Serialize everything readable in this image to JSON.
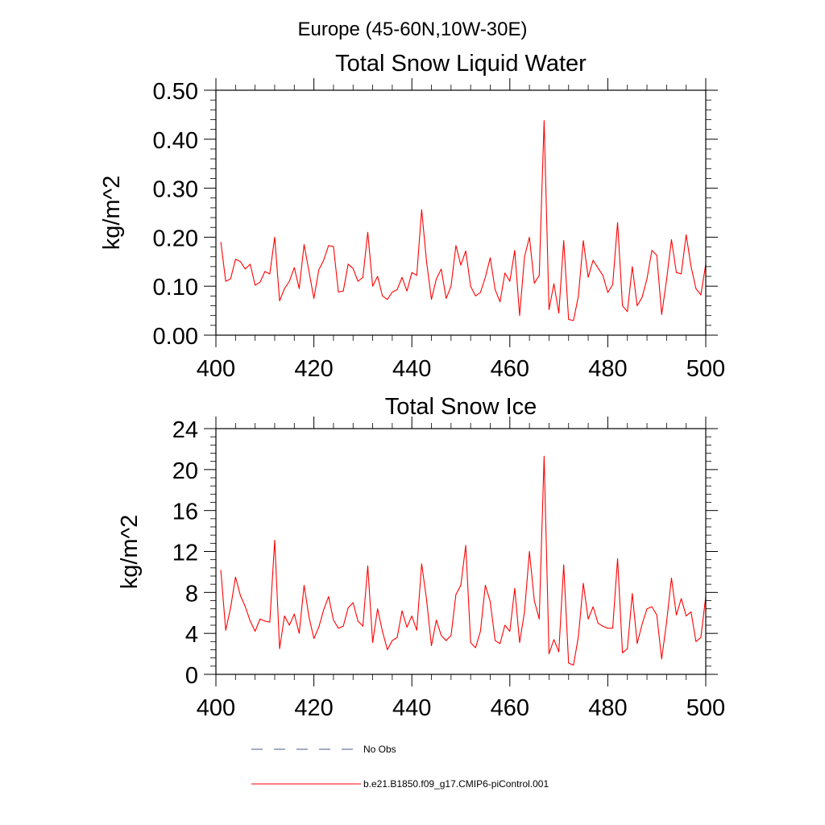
{
  "figure": {
    "suptitle": "Europe (45-60N,10W-30E)",
    "series_color": "#ff0000",
    "obs_color": "#4a5a8a",
    "legend": {
      "obs_label": "No Obs",
      "model_label": "b.e21.B1850.f09_g17.CMIP6-piControl.001"
    }
  },
  "chart_data": [
    {
      "type": "line",
      "title": "Total Snow Liquid Water",
      "xlabel": "",
      "ylabel": "kg/m^2",
      "xlim": [
        400,
        500
      ],
      "ylim": [
        0,
        0.5
      ],
      "xticks": [
        400,
        420,
        440,
        460,
        480,
        500
      ],
      "yticks": [
        0,
        0.1,
        0.2,
        0.3,
        0.4,
        0.5
      ],
      "ytick_labels": [
        "0.00",
        "0.10",
        "0.20",
        "0.30",
        "0.40",
        "0.50"
      ],
      "grid": false,
      "series": [
        {
          "name": "b.e21.B1850.f09_g17.CMIP6-piControl.001",
          "x": [
            401,
            402,
            403,
            404,
            405,
            406,
            407,
            408,
            409,
            410,
            411,
            412,
            413,
            414,
            415,
            416,
            417,
            418,
            419,
            420,
            421,
            422,
            423,
            424,
            425,
            426,
            427,
            428,
            429,
            430,
            431,
            432,
            433,
            434,
            435,
            436,
            437,
            438,
            439,
            440,
            441,
            442,
            443,
            444,
            445,
            446,
            447,
            448,
            449,
            450,
            451,
            452,
            453,
            454,
            455,
            456,
            457,
            458,
            459,
            460,
            461,
            462,
            463,
            464,
            465,
            466,
            467,
            468,
            469,
            470,
            471,
            472,
            473,
            474,
            475,
            476,
            477,
            478,
            479,
            480,
            481,
            482,
            483,
            484,
            485,
            486,
            487,
            488,
            489,
            490,
            491,
            492,
            493,
            494,
            495,
            496,
            497,
            498,
            499,
            500
          ],
          "values": [
            0.19,
            0.11,
            0.115,
            0.155,
            0.15,
            0.135,
            0.145,
            0.102,
            0.108,
            0.13,
            0.125,
            0.2,
            0.07,
            0.095,
            0.11,
            0.138,
            0.095,
            0.185,
            0.13,
            0.075,
            0.133,
            0.153,
            0.183,
            0.181,
            0.088,
            0.09,
            0.145,
            0.136,
            0.11,
            0.118,
            0.21,
            0.1,
            0.12,
            0.08,
            0.073,
            0.088,
            0.093,
            0.118,
            0.09,
            0.128,
            0.122,
            0.256,
            0.15,
            0.073,
            0.115,
            0.135,
            0.075,
            0.1,
            0.183,
            0.143,
            0.172,
            0.1,
            0.08,
            0.087,
            0.118,
            0.158,
            0.093,
            0.068,
            0.127,
            0.11,
            0.173,
            0.04,
            0.16,
            0.2,
            0.106,
            0.122,
            0.438,
            0.052,
            0.105,
            0.045,
            0.193,
            0.032,
            0.03,
            0.08,
            0.193,
            0.118,
            0.153,
            0.137,
            0.122,
            0.087,
            0.103,
            0.23,
            0.06,
            0.048,
            0.14,
            0.06,
            0.077,
            0.115,
            0.173,
            0.163,
            0.042,
            0.113,
            0.195,
            0.128,
            0.125,
            0.205,
            0.14,
            0.095,
            0.082,
            0.145
          ]
        }
      ]
    },
    {
      "type": "line",
      "title": "Total Snow Ice",
      "xlabel": "",
      "ylabel": "kg/m^2",
      "xlim": [
        400,
        500
      ],
      "ylim": [
        0,
        24
      ],
      "xticks": [
        400,
        420,
        440,
        460,
        480,
        500
      ],
      "yticks": [
        0,
        4,
        8,
        12,
        16,
        20,
        24
      ],
      "ytick_labels": [
        "0",
        "4",
        "8",
        "12",
        "16",
        "20",
        "24"
      ],
      "grid": false,
      "series": [
        {
          "name": "b.e21.B1850.f09_g17.CMIP6-piControl.001",
          "x": [
            401,
            402,
            403,
            404,
            405,
            406,
            407,
            408,
            409,
            410,
            411,
            412,
            413,
            414,
            415,
            416,
            417,
            418,
            419,
            420,
            421,
            422,
            423,
            424,
            425,
            426,
            427,
            428,
            429,
            430,
            431,
            432,
            433,
            434,
            435,
            436,
            437,
            438,
            439,
            440,
            441,
            442,
            443,
            444,
            445,
            446,
            447,
            448,
            449,
            450,
            451,
            452,
            453,
            454,
            455,
            456,
            457,
            458,
            459,
            460,
            461,
            462,
            463,
            464,
            465,
            466,
            467,
            468,
            469,
            470,
            471,
            472,
            473,
            474,
            475,
            476,
            477,
            478,
            479,
            480,
            481,
            482,
            483,
            484,
            485,
            486,
            487,
            488,
            489,
            490,
            491,
            492,
            493,
            494,
            495,
            496,
            497,
            498,
            499,
            500
          ],
          "values": [
            10.2,
            4.3,
            6.5,
            9.5,
            7.7,
            6.6,
            5.2,
            4.2,
            5.4,
            5.2,
            5.1,
            13.1,
            2.5,
            5.7,
            4.8,
            5.9,
            4.0,
            8.7,
            5.6,
            3.5,
            4.6,
            6.3,
            7.6,
            5.3,
            4.5,
            4.7,
            6.5,
            7.0,
            5.2,
            4.7,
            10.6,
            3.1,
            6.4,
            4.2,
            2.4,
            3.3,
            3.6,
            6.2,
            4.6,
            5.7,
            4.3,
            10.8,
            7.3,
            2.8,
            5.3,
            3.8,
            3.3,
            3.8,
            7.8,
            8.7,
            12.6,
            3.1,
            2.6,
            4.2,
            8.7,
            7.1,
            3.3,
            3.0,
            4.8,
            4.2,
            8.4,
            3.1,
            6.1,
            12.0,
            7.2,
            5.4,
            21.3,
            2.0,
            3.4,
            2.2,
            10.7,
            1.1,
            0.9,
            3.7,
            8.9,
            5.4,
            6.6,
            5.0,
            4.7,
            4.5,
            4.5,
            11.3,
            2.1,
            2.5,
            7.9,
            3.0,
            4.9,
            6.4,
            6.6,
            5.8,
            1.5,
            5.1,
            9.4,
            5.8,
            7.4,
            5.7,
            6.1,
            3.2,
            3.6,
            7.6
          ]
        }
      ]
    }
  ]
}
